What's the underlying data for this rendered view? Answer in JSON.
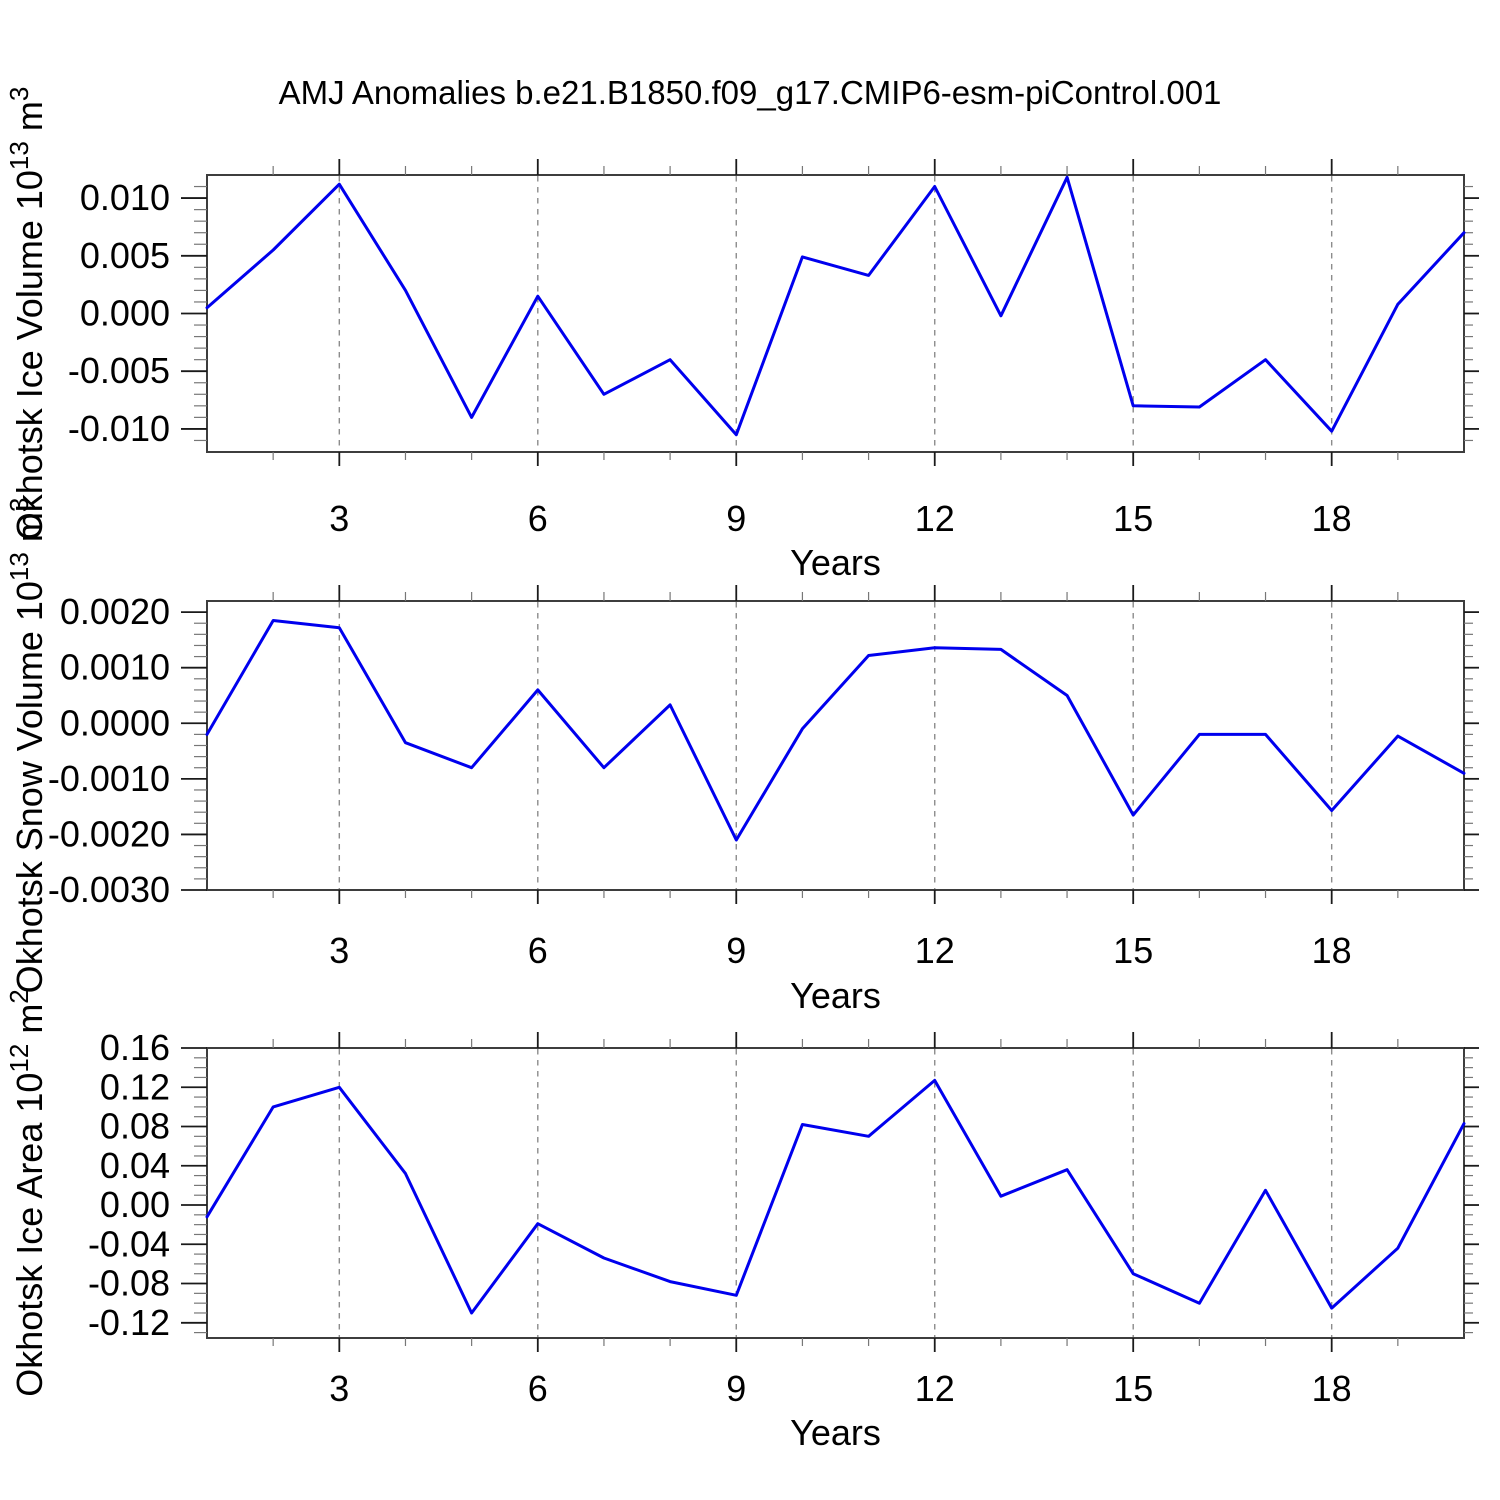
{
  "title": "AMJ Anomalies b.e21.B1850.f09_g17.CMIP6-esm-piControl.001",
  "colors": {
    "line": "#0000EE",
    "grid": "#8C8C8C",
    "frame": "#3D3D3D",
    "tick_major": "#1A1A1A",
    "tick_minor": "#777777",
    "background": "#FFFFFF"
  },
  "chart_data": [
    {
      "type": "line",
      "title": "",
      "ylabel_parts": [
        "Okhotsk Ice Volume 10",
        "13",
        " m",
        "3"
      ],
      "xlabel": "Years",
      "x": [
        1,
        2,
        3,
        4,
        5,
        6,
        7,
        8,
        9,
        10,
        11,
        12,
        13,
        14,
        15,
        16,
        17,
        18,
        19,
        20
      ],
      "values": [
        0.0005,
        0.0055,
        0.0112,
        0.002,
        -0.009,
        0.0015,
        -0.007,
        -0.004,
        -0.0105,
        0.0049,
        0.0033,
        0.011,
        -0.0002,
        0.0118,
        -0.008,
        -0.0081,
        -0.004,
        -0.0102,
        0.0008,
        0.007
      ],
      "xlim": [
        1,
        20
      ],
      "ylim": [
        -0.012,
        0.012
      ],
      "xticks": [
        3,
        6,
        9,
        12,
        15,
        18
      ],
      "xtick_labels": [
        "3",
        "6",
        "9",
        "12",
        "15",
        "18"
      ],
      "xminor_step": 1,
      "yticks": [
        0.01,
        0.005,
        0.0,
        -0.005,
        -0.01
      ],
      "ytick_labels": [
        "0.010",
        "0.005",
        "0.000",
        "-0.005",
        "-0.010"
      ],
      "yminor_step": 0.001,
      "grid": "vertical-dashed",
      "legend": "none"
    },
    {
      "type": "line",
      "title": "",
      "ylabel_parts": [
        "Okhotsk Snow Volume 10",
        "13",
        " m",
        "3"
      ],
      "xlabel": "Years",
      "x": [
        1,
        2,
        3,
        4,
        5,
        6,
        7,
        8,
        9,
        10,
        11,
        12,
        13,
        14,
        15,
        16,
        17,
        18,
        19,
        20
      ],
      "values": [
        -0.0002,
        0.00185,
        0.00172,
        -0.00035,
        -0.0008,
        0.0006,
        -0.0008,
        0.00033,
        -0.0021,
        -0.0001,
        0.00122,
        0.00136,
        0.00133,
        0.0005,
        -0.00165,
        -0.0002,
        -0.0002,
        -0.00157,
        -0.00023,
        -0.0009
      ],
      "xlim": [
        1,
        20
      ],
      "ylim": [
        -0.003,
        0.0022
      ],
      "xticks": [
        3,
        6,
        9,
        12,
        15,
        18
      ],
      "xtick_labels": [
        "3",
        "6",
        "9",
        "12",
        "15",
        "18"
      ],
      "xminor_step": 1,
      "yticks": [
        0.002,
        0.001,
        0.0,
        -0.001,
        -0.002,
        -0.003
      ],
      "ytick_labels": [
        "0.0020",
        "0.0010",
        "0.0000",
        "-0.0010",
        "-0.0020",
        "-0.0030"
      ],
      "yminor_step": 0.0002,
      "grid": "vertical-dashed",
      "legend": "none"
    },
    {
      "type": "line",
      "title": "",
      "ylabel_parts": [
        "Okhotsk Ice Area 10",
        "12",
        " m",
        "2"
      ],
      "xlabel": "Years",
      "x": [
        1,
        2,
        3,
        4,
        5,
        6,
        7,
        8,
        9,
        10,
        11,
        12,
        13,
        14,
        15,
        16,
        17,
        18,
        19,
        20
      ],
      "values": [
        -0.012,
        0.1,
        0.12,
        0.032,
        -0.11,
        -0.019,
        -0.054,
        -0.078,
        -0.092,
        0.082,
        0.07,
        0.127,
        0.009,
        0.036,
        -0.07,
        -0.1,
        0.015,
        -0.105,
        -0.044,
        0.083
      ],
      "xlim": [
        1,
        20
      ],
      "ylim": [
        -0.1355,
        0.16
      ],
      "xticks": [
        3,
        6,
        9,
        12,
        15,
        18
      ],
      "xtick_labels": [
        "3",
        "6",
        "9",
        "12",
        "15",
        "18"
      ],
      "xminor_step": 1,
      "yticks": [
        0.16,
        0.12,
        0.08,
        0.04,
        0.0,
        -0.04,
        -0.08,
        -0.12
      ],
      "ytick_labels": [
        "0.16",
        "0.12",
        "0.08",
        "0.04",
        "0.00",
        "-0.04",
        "-0.08",
        "-0.12"
      ],
      "yminor_step": 0.01,
      "grid": "vertical-dashed",
      "legend": "none"
    }
  ]
}
